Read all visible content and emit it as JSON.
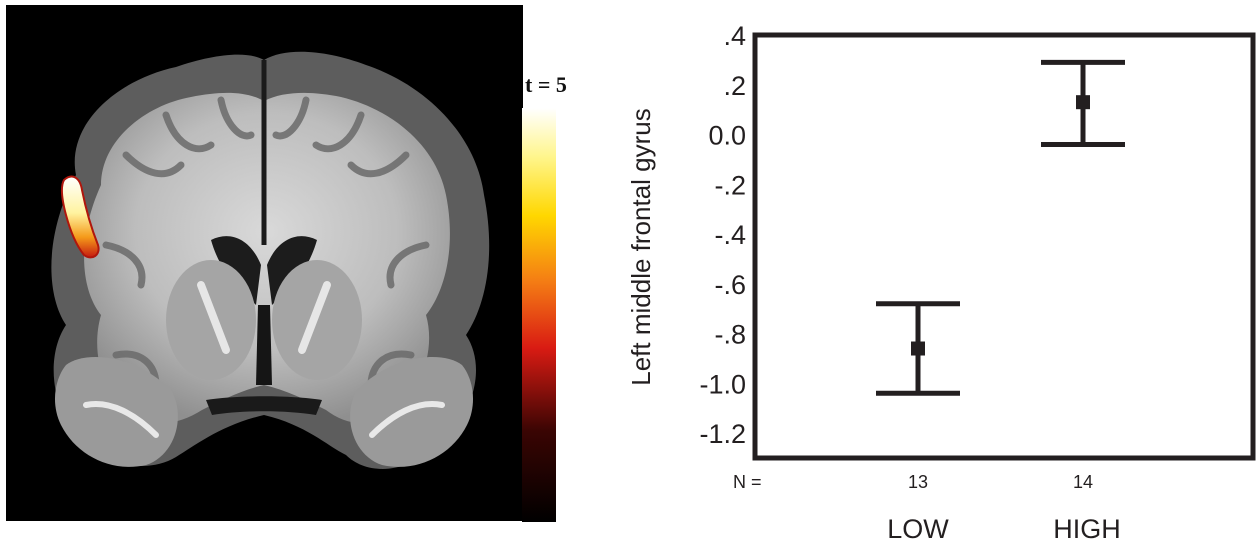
{
  "colorbar": {
    "label": "t = 5",
    "colors": [
      "#000000",
      "#6b0a06",
      "#d91b13",
      "#f47c14",
      "#ffd700",
      "#fff58a",
      "#ffffff"
    ]
  },
  "chart_data": {
    "type": "errorbar",
    "title": "",
    "xlabel": "",
    "ylabel": "Left middle frontal gyrus",
    "categories": [
      "LOW",
      "HIGH"
    ],
    "n_label": "N =",
    "n_values": [
      "13",
      "14"
    ],
    "ylim": [
      -1.3,
      0.4
    ],
    "yticks": [
      0.4,
      0.2,
      0.0,
      -0.2,
      -0.4,
      -0.6,
      -0.8,
      -1.0,
      -1.2
    ],
    "ytick_labels": [
      ".4",
      ".2",
      "0.0",
      "-.2",
      "-.4",
      "-.6",
      "-.8",
      "-1.0",
      "-1.2"
    ],
    "points": [
      {
        "category": "LOW",
        "mean": -0.86,
        "lower": -1.04,
        "upper": -0.68
      },
      {
        "category": "HIGH",
        "mean": 0.13,
        "lower": -0.04,
        "upper": 0.29
      }
    ],
    "color": "#231f20"
  }
}
